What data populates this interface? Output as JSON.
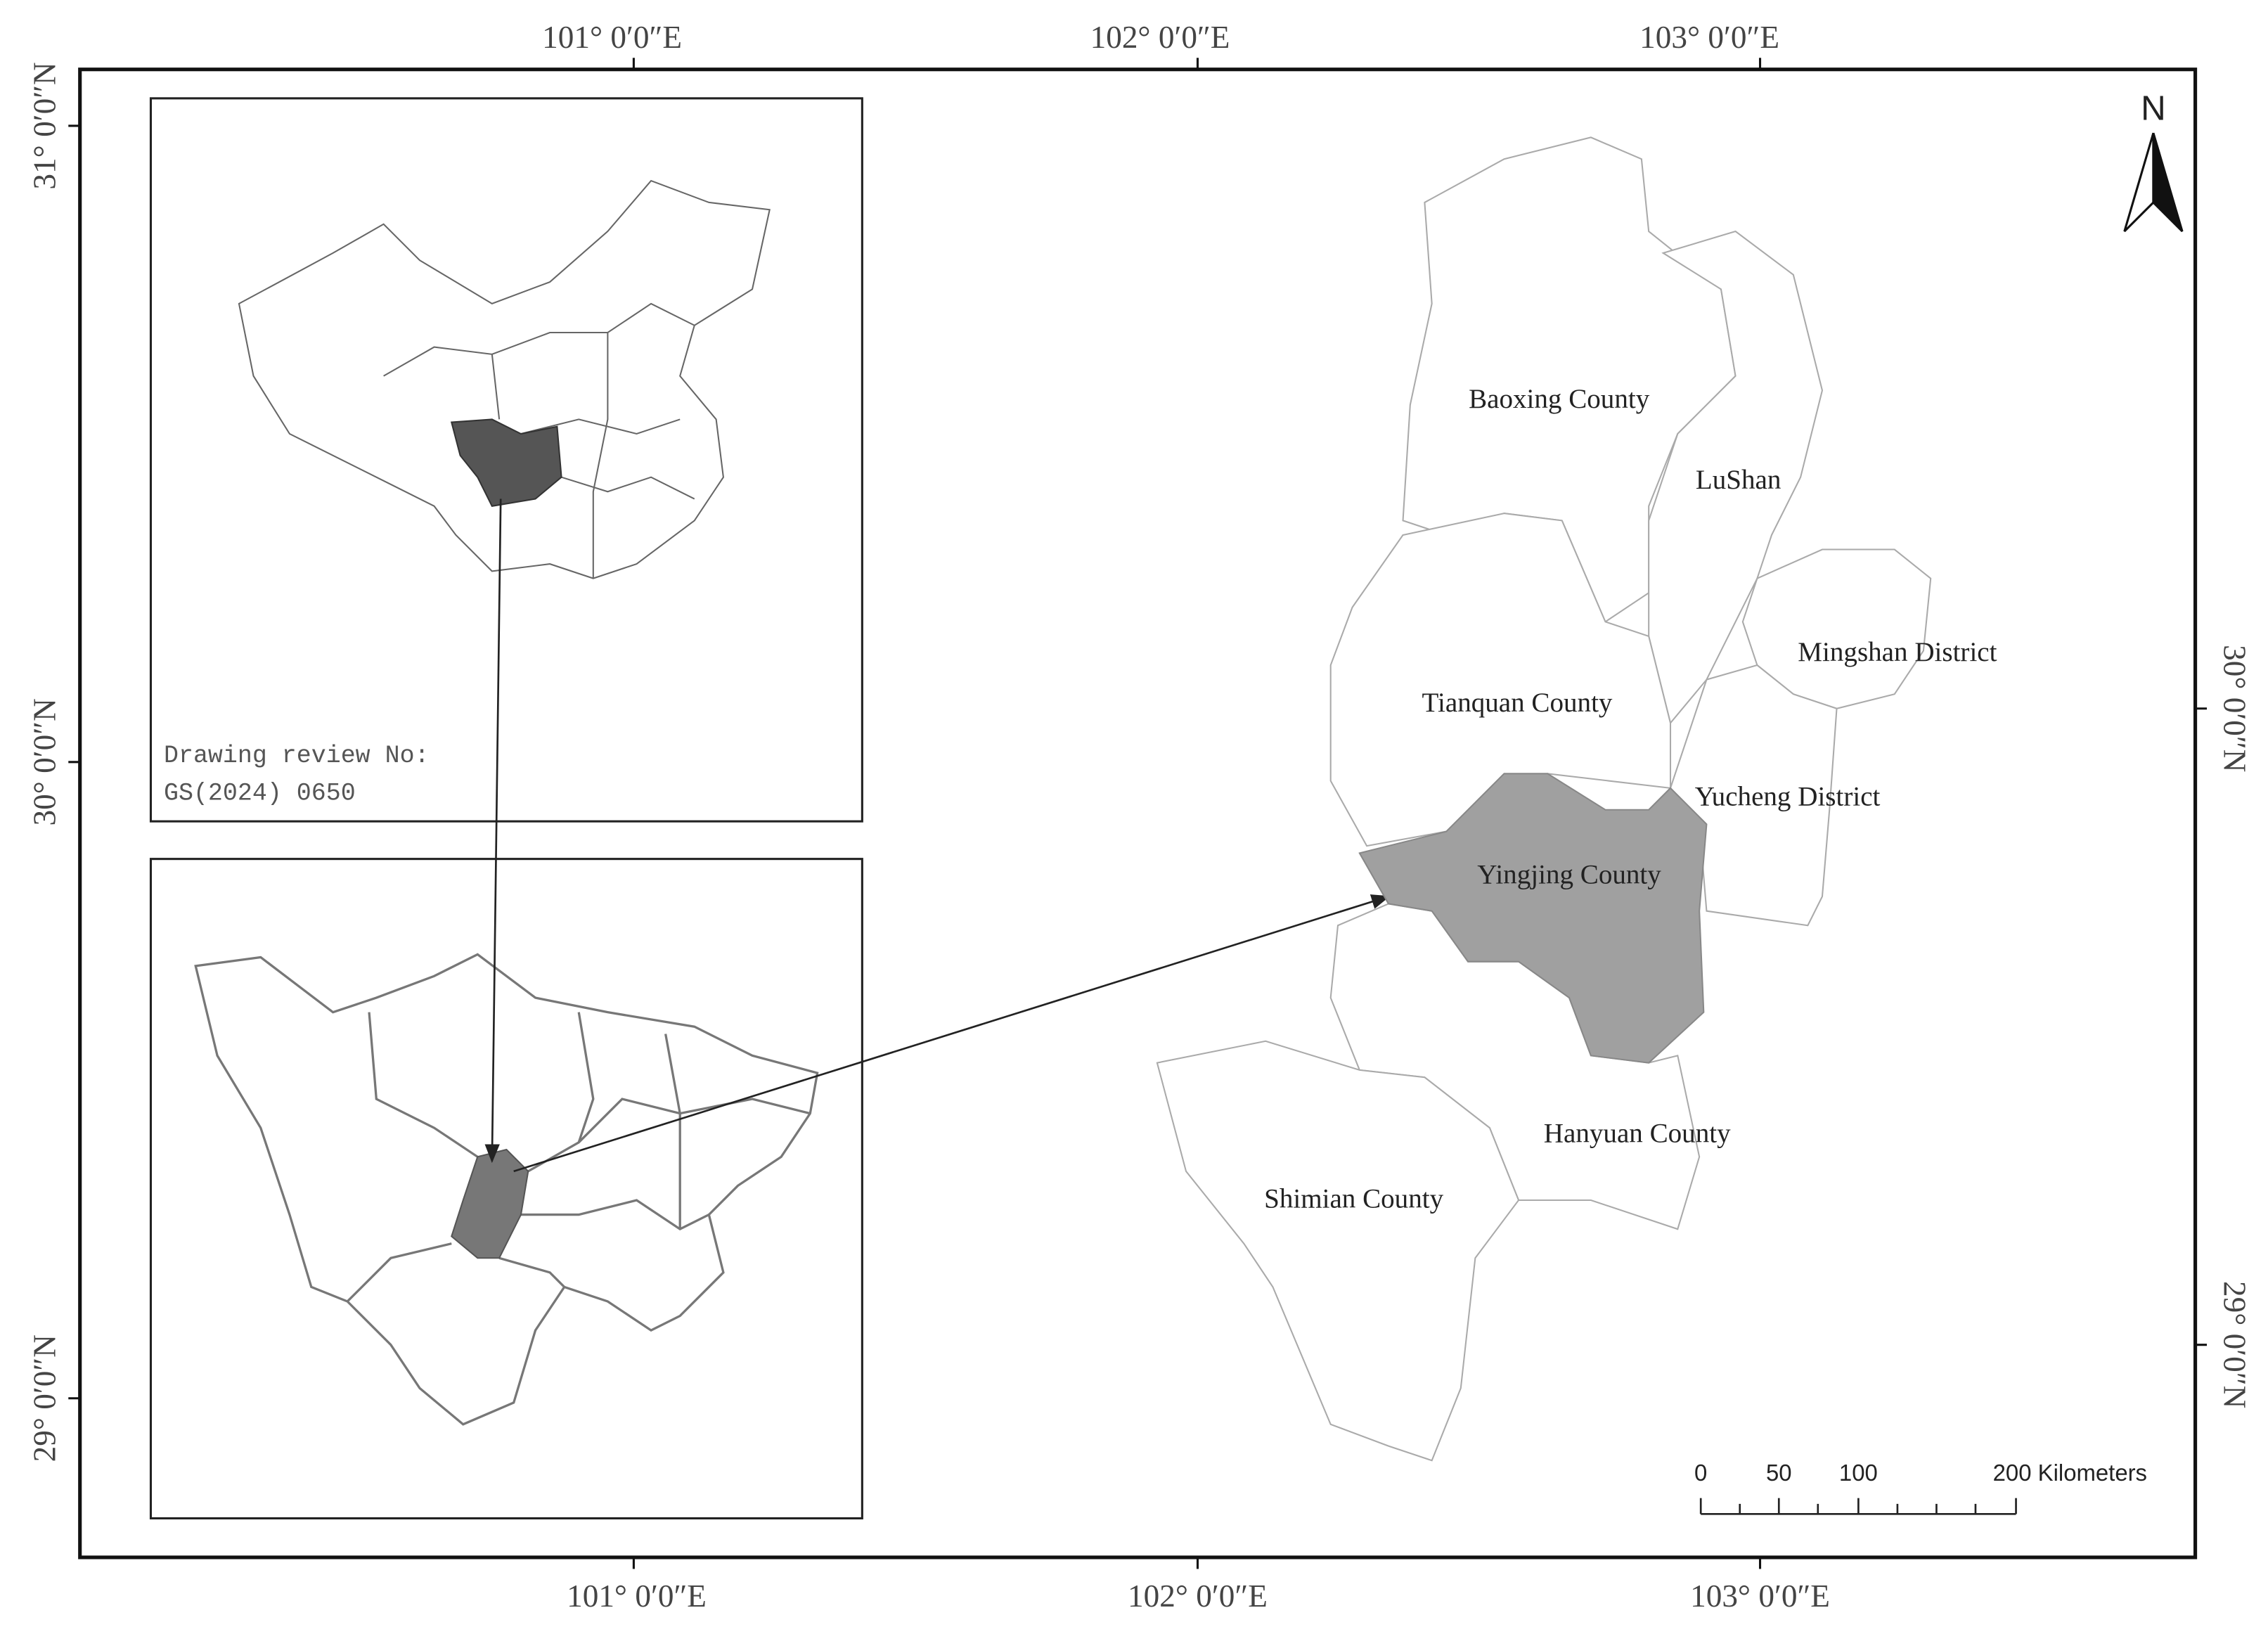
{
  "axes": {
    "top": [
      "101°  0′0″E",
      "102°  0′0″E",
      "103°  0′0″E"
    ],
    "bottom": [
      "101°  0′0″E",
      "102°  0′0″E",
      "103°  0′0″E"
    ],
    "left": [
      "31°  0′0″N",
      "30°  0′0″N",
      "29°  0′0″N"
    ],
    "right": [
      "30°  0′0″N",
      "29°  0′0″N"
    ]
  },
  "inset": {
    "review_line1": "Drawing review No:",
    "review_line2": "GS(2024) 0650"
  },
  "counties": [
    "Baoxing County",
    "LuShan",
    "Mingshan District",
    "Tianquan County",
    "Yucheng District",
    "Yingjing County",
    "Hanyuan County",
    "Shimian County"
  ],
  "north_arrow": "N",
  "scale_bar": [
    "0",
    "50",
    "100",
    "200 Kilometers"
  ]
}
